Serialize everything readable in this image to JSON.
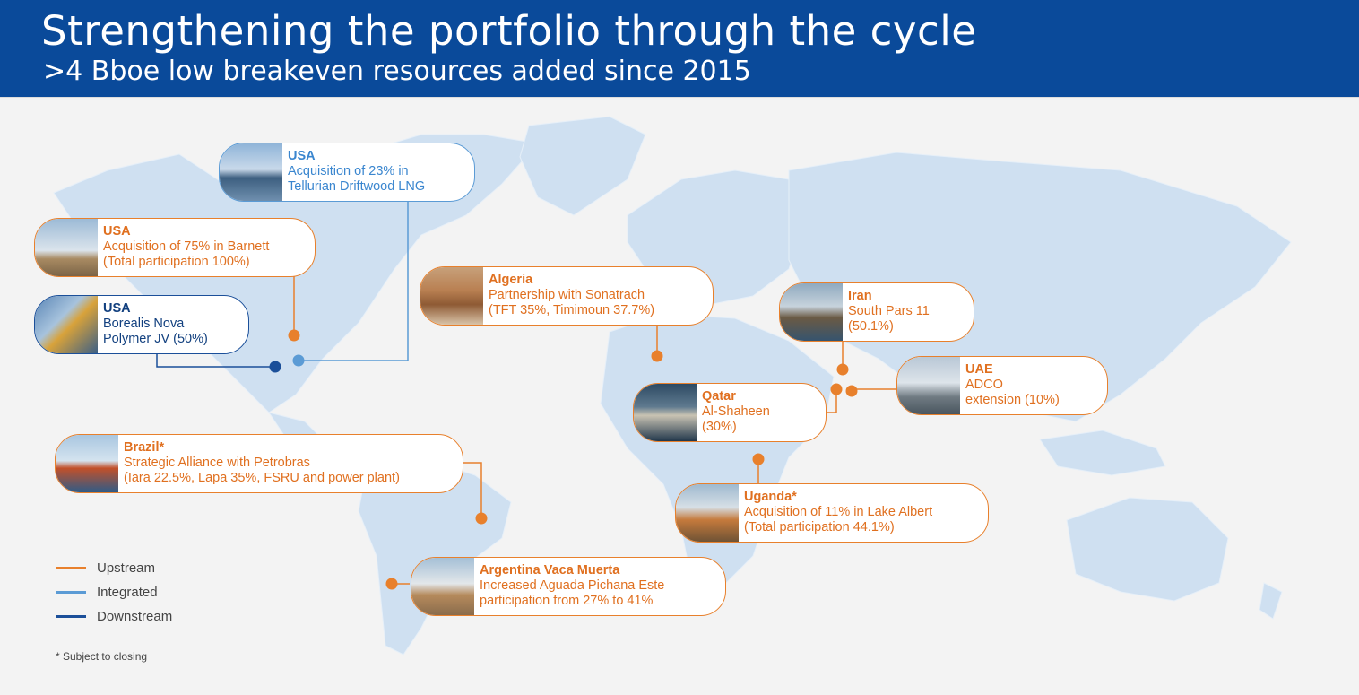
{
  "header": {
    "title": "Strengthening the portfolio through the cycle",
    "subtitle": ">4 Bboe low breakeven resources added since 2015"
  },
  "colors": {
    "upstream": "#e8802c",
    "integrated": "#5b9bd5",
    "downstream": "#1b4f99",
    "header": "#0a4a9a",
    "land": "#cfe0f1"
  },
  "projects": {
    "usa_lng": {
      "country": "USA",
      "line1": "Acquisition of 23% in",
      "line2": "Tellurian Driftwood LNG",
      "segment": "integrated"
    },
    "usa_barnett": {
      "country": "USA",
      "line1": "Acquisition of 75% in Barnett",
      "line2": "(Total participation 100%)",
      "segment": "upstream"
    },
    "usa_borealis": {
      "country": "USA",
      "line1": "Borealis Nova",
      "line2": "Polymer JV (50%)",
      "segment": "downstream"
    },
    "algeria": {
      "country": "Algeria",
      "line1": "Partnership with Sonatrach",
      "line2": "(TFT 35%, Timimoun 37.7%)",
      "segment": "upstream"
    },
    "iran": {
      "country": "Iran",
      "line1": "South Pars 11",
      "line2": "(50.1%)",
      "segment": "upstream"
    },
    "uae": {
      "country": "UAE",
      "line1": "ADCO",
      "line2": "extension (10%)",
      "segment": "upstream"
    },
    "qatar": {
      "country": "Qatar",
      "line1": "Al-Shaheen",
      "line2": "(30%)",
      "segment": "upstream"
    },
    "brazil": {
      "country": "Brazil*",
      "line1": "Strategic Alliance with Petrobras",
      "line2": "(Iara 22.5%, Lapa 35%, FSRU and power plant)",
      "segment": "upstream"
    },
    "uganda": {
      "country": "Uganda*",
      "line1": "Acquisition of 11% in Lake Albert",
      "line2": "(Total participation 44.1%)",
      "segment": "upstream"
    },
    "argentina": {
      "country": "Argentina Vaca Muerta",
      "line1": "Increased Aguada Pichana Este",
      "line2": "participation from 27% to 41%",
      "segment": "upstream"
    }
  },
  "legend": {
    "upstream": "Upstream",
    "integrated": "Integrated",
    "downstream": "Downstream"
  },
  "footnote": "* Subject to closing"
}
